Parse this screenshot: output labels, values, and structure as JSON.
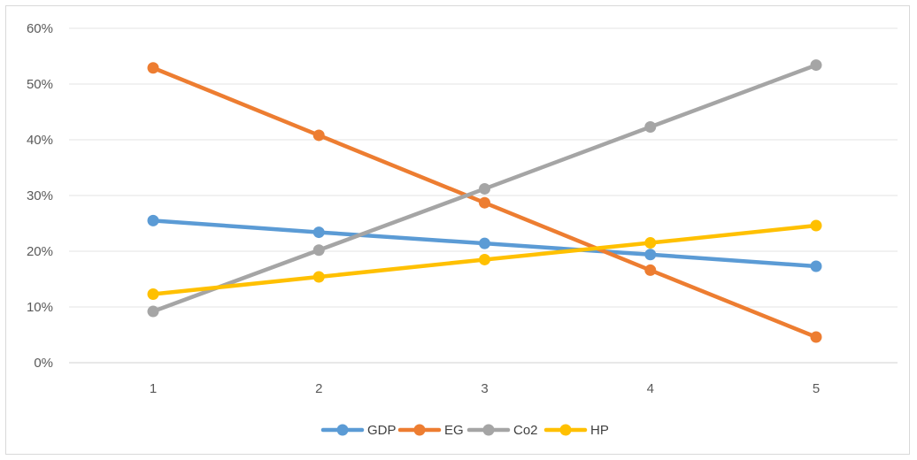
{
  "chart_data": {
    "type": "line",
    "x": [
      1,
      2,
      3,
      4,
      5
    ],
    "x_tick_labels": [
      "1",
      "2",
      "3",
      "4",
      "5"
    ],
    "y_tick_labels": [
      "0%",
      "10%",
      "20%",
      "30%",
      "40%",
      "50%",
      "60%"
    ],
    "ylim": [
      0,
      60
    ],
    "y_unit": "%",
    "grid": true,
    "legend_position": "bottom",
    "series": [
      {
        "name": "GDP",
        "color": "#5b9bd5",
        "values": [
          25.5,
          23.4,
          21.4,
          19.4,
          17.3
        ]
      },
      {
        "name": "EG",
        "color": "#ed7d31",
        "values": [
          52.9,
          40.8,
          28.7,
          16.6,
          4.6
        ]
      },
      {
        "name": "Co2",
        "color": "#a5a5a5",
        "values": [
          9.2,
          20.2,
          31.2,
          42.3,
          53.4
        ]
      },
      {
        "name": "HP",
        "color": "#ffc000",
        "values": [
          12.3,
          15.4,
          18.5,
          21.5,
          24.6
        ]
      }
    ]
  }
}
